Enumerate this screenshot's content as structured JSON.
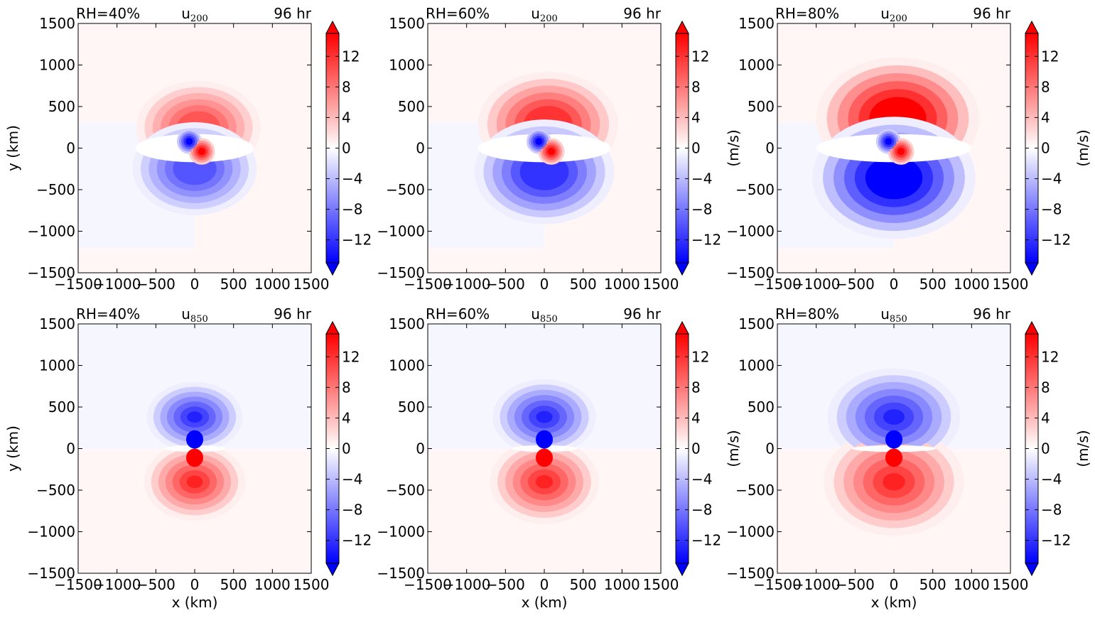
{
  "figure": {
    "colors": {
      "negative": "#0000ff",
      "positive": "#ff0000",
      "neutral": "#ffffff"
    }
  },
  "colorbar": {
    "ticks": [
      "12",
      "8",
      "4",
      "0",
      "−4",
      "−8",
      "−12"
    ],
    "tick_values": [
      12,
      8,
      4,
      0,
      -4,
      -8,
      -12
    ],
    "range": [
      -15,
      15
    ],
    "label": "(m/s)"
  },
  "axes": {
    "x_ticks": [
      "−1500",
      "−1000",
      "−500",
      "0",
      "500",
      "1000",
      "1500"
    ],
    "y_ticks": [
      "1500",
      "1000",
      "500",
      "0",
      "−500",
      "−1000",
      "−1500"
    ],
    "tick_values": [
      -1500,
      -1000,
      -500,
      0,
      500,
      1000,
      1500
    ],
    "xlabel": "x (km)",
    "ylabel": "y (km)"
  },
  "panels": [
    {
      "rh": "RH=40%",
      "var": "u",
      "level": "200",
      "time": "96 hr"
    },
    {
      "rh": "RH=60%",
      "var": "u",
      "level": "200",
      "time": "96 hr"
    },
    {
      "rh": "RH=80%",
      "var": "u",
      "level": "200",
      "time": "96 hr"
    },
    {
      "rh": "RH=40%",
      "var": "u",
      "level": "850",
      "time": "96 hr"
    },
    {
      "rh": "RH=60%",
      "var": "u",
      "level": "850",
      "time": "96 hr"
    },
    {
      "rh": "RH=80%",
      "var": "u",
      "level": "850",
      "time": "96 hr"
    }
  ],
  "chart_data": [
    {
      "type": "heatmap",
      "title": "u200",
      "rh": "RH=40%",
      "time": "96 hr",
      "xlabel": "",
      "ylabel": "y (km)",
      "colorbar_label": "",
      "xlim": [
        -1500,
        1500
      ],
      "ylim": [
        -1500,
        1500
      ],
      "clim": [
        -15,
        15
      ],
      "features": {
        "upper_pos_max": 10,
        "upper_neg_min": -10,
        "core_pos": 15,
        "core_neg": -15,
        "ring_radius_km": 450,
        "outer_radius_km": 800
      }
    },
    {
      "type": "heatmap",
      "title": "u200",
      "rh": "RH=60%",
      "time": "96 hr",
      "xlabel": "",
      "ylabel": "",
      "colorbar_label": "(m/s)",
      "xlim": [
        -1500,
        1500
      ],
      "ylim": [
        -1500,
        1500
      ],
      "clim": [
        -15,
        15
      ],
      "features": {
        "upper_pos_max": 12,
        "upper_neg_min": -12,
        "core_pos": 15,
        "core_neg": -15,
        "ring_radius_km": 520,
        "outer_radius_km": 900
      }
    },
    {
      "type": "heatmap",
      "title": "u200",
      "rh": "RH=80%",
      "time": "96 hr",
      "xlabel": "",
      "ylabel": "",
      "colorbar_label": "(m/s)",
      "xlim": [
        -1500,
        1500
      ],
      "ylim": [
        -1500,
        1500
      ],
      "clim": [
        -15,
        15
      ],
      "features": {
        "upper_pos_max": 15,
        "upper_neg_min": -15,
        "core_pos": 15,
        "core_neg": -15,
        "ring_radius_km": 650,
        "outer_radius_km": 1050
      }
    },
    {
      "type": "heatmap",
      "title": "u850",
      "rh": "RH=40%",
      "time": "96 hr",
      "xlabel": "x (km)",
      "ylabel": "y (km)",
      "colorbar_label": "",
      "xlim": [
        -1500,
        1500
      ],
      "ylim": [
        -1500,
        1500
      ],
      "clim": [
        -15,
        15
      ],
      "features": {
        "north_neg_core": -15,
        "south_pos_core": 15,
        "outer_radius_km": 650
      }
    },
    {
      "type": "heatmap",
      "title": "u850",
      "rh": "RH=60%",
      "time": "96 hr",
      "xlabel": "x (km)",
      "ylabel": "",
      "colorbar_label": "(m/s)",
      "xlim": [
        -1500,
        1500
      ],
      "ylim": [
        -1500,
        1500
      ],
      "clim": [
        -15,
        15
      ],
      "features": {
        "north_neg_core": -15,
        "south_pos_core": 15,
        "outer_radius_km": 700
      }
    },
    {
      "type": "heatmap",
      "title": "u850",
      "rh": "RH=80%",
      "time": "96 hr",
      "xlabel": "x (km)",
      "ylabel": "",
      "colorbar_label": "(m/s)",
      "xlim": [
        -1500,
        1500
      ],
      "ylim": [
        -1500,
        1500
      ],
      "clim": [
        -15,
        15
      ],
      "features": {
        "north_neg_core": -15,
        "south_pos_core": 15,
        "outer_radius_km": 900
      }
    }
  ]
}
